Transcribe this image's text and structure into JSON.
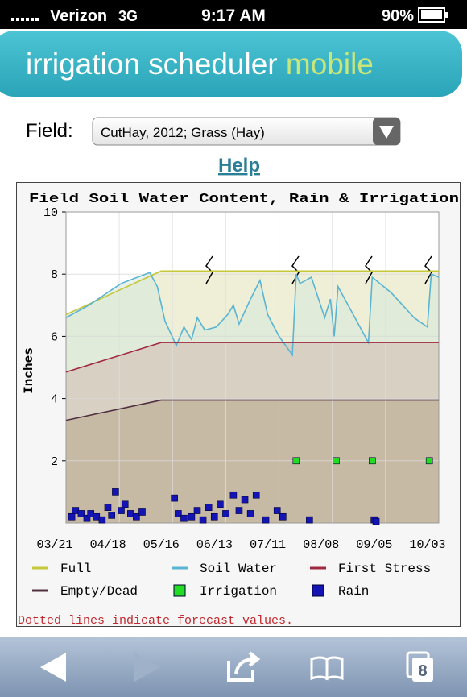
{
  "status_bar": {
    "carrier": "Verizon",
    "network": "3G",
    "time": "9:17 AM",
    "battery": "90%"
  },
  "header": {
    "title": "irrigation scheduler",
    "title_accent": "mobile"
  },
  "form": {
    "label": "Field:",
    "selected": "CutHay, 2012; Grass (Hay)",
    "help": "Help"
  },
  "chart_data": {
    "type": "line",
    "title": "Field Soil Water Content, Rain & Irrigation",
    "y_label": "Inches",
    "xlim": [
      "03/21",
      "10/03"
    ],
    "xticks": [
      "03/21",
      "04/18",
      "05/16",
      "06/13",
      "07/11",
      "08/08",
      "09/05",
      "10/03"
    ],
    "ylim": [
      0,
      10
    ],
    "yticks": [
      2,
      4,
      6,
      8,
      10
    ],
    "grid": true,
    "series": [
      {
        "name": "Full",
        "type": "line",
        "color": "#c4c83a",
        "fill": "#eeefd6",
        "x": [
          "03/21",
          "05/10",
          "10/03"
        ],
        "values": [
          6.7,
          8.1,
          8.1
        ]
      },
      {
        "name": "Soil Water",
        "type": "line",
        "color": "#5ab4d2",
        "fill": "#d6e8dc",
        "x": [
          "03/21",
          "04/02",
          "04/19",
          "05/04",
          "05/08",
          "05/12",
          "05/18",
          "05/22",
          "05/26",
          "05/29",
          "06/02",
          "06/08",
          "06/14",
          "06/17",
          "06/20",
          "06/26",
          "07/01",
          "07/05",
          "07/11",
          "07/18",
          "07/20",
          "07/22",
          "07/28",
          "08/04",
          "08/07",
          "08/09",
          "08/11",
          "08/27",
          "08/29",
          "09/08",
          "09/20",
          "09/27",
          "09/29",
          "10/03"
        ],
        "values": [
          6.6,
          7.0,
          7.7,
          8.05,
          7.6,
          6.5,
          5.7,
          6.3,
          5.9,
          6.6,
          6.2,
          6.3,
          6.7,
          7.0,
          6.4,
          7.2,
          7.8,
          6.7,
          6.0,
          5.4,
          8.0,
          7.7,
          7.9,
          6.6,
          7.2,
          6.0,
          7.6,
          5.8,
          7.9,
          7.4,
          6.6,
          6.3,
          8.0,
          7.9
        ]
      },
      {
        "name": "First Stress",
        "type": "line",
        "color": "#a02840",
        "fill": "#d8d0c2",
        "x": [
          "03/21",
          "05/10",
          "10/03"
        ],
        "values": [
          4.85,
          5.8,
          5.8
        ]
      },
      {
        "name": "Empty/Dead",
        "type": "line",
        "color": "#503040",
        "fill": "#c6baa5",
        "x": [
          "03/21",
          "05/10",
          "10/03"
        ],
        "values": [
          3.3,
          3.95,
          3.95
        ]
      },
      {
        "name": "Irrigation",
        "type": "scatter",
        "color": "#22dd22",
        "x": [
          "07/20",
          "08/10",
          "08/29",
          "09/28"
        ],
        "values": [
          2,
          2,
          2,
          2
        ]
      },
      {
        "name": "Rain",
        "type": "scatter",
        "color": "#1414b4",
        "x": [
          "03/24",
          "03/26",
          "03/29",
          "04/01",
          "04/03",
          "04/06",
          "04/09",
          "04/12",
          "04/14",
          "04/16",
          "04/19",
          "04/21",
          "04/24",
          "04/27",
          "04/30",
          "05/17",
          "05/19",
          "05/22",
          "05/26",
          "05/29",
          "06/01",
          "06/04",
          "06/07",
          "06/10",
          "06/13",
          "06/17",
          "06/20",
          "06/23",
          "06/26",
          "06/29",
          "07/04",
          "07/10",
          "07/13",
          "07/27",
          "08/30",
          "08/31"
        ],
        "values": [
          0.2,
          0.4,
          0.3,
          0.15,
          0.3,
          0.2,
          0.1,
          0.5,
          0.25,
          1.0,
          0.4,
          0.6,
          0.3,
          0.2,
          0.35,
          0.8,
          0.3,
          0.15,
          0.2,
          0.4,
          0.1,
          0.5,
          0.2,
          0.6,
          0.3,
          0.9,
          0.4,
          0.75,
          0.3,
          0.9,
          0.1,
          0.4,
          0.2,
          0.1,
          0.1,
          0.05
        ]
      }
    ],
    "note": "Dotted lines indicate forecast values."
  },
  "toolbar": {
    "tabs": "8"
  }
}
